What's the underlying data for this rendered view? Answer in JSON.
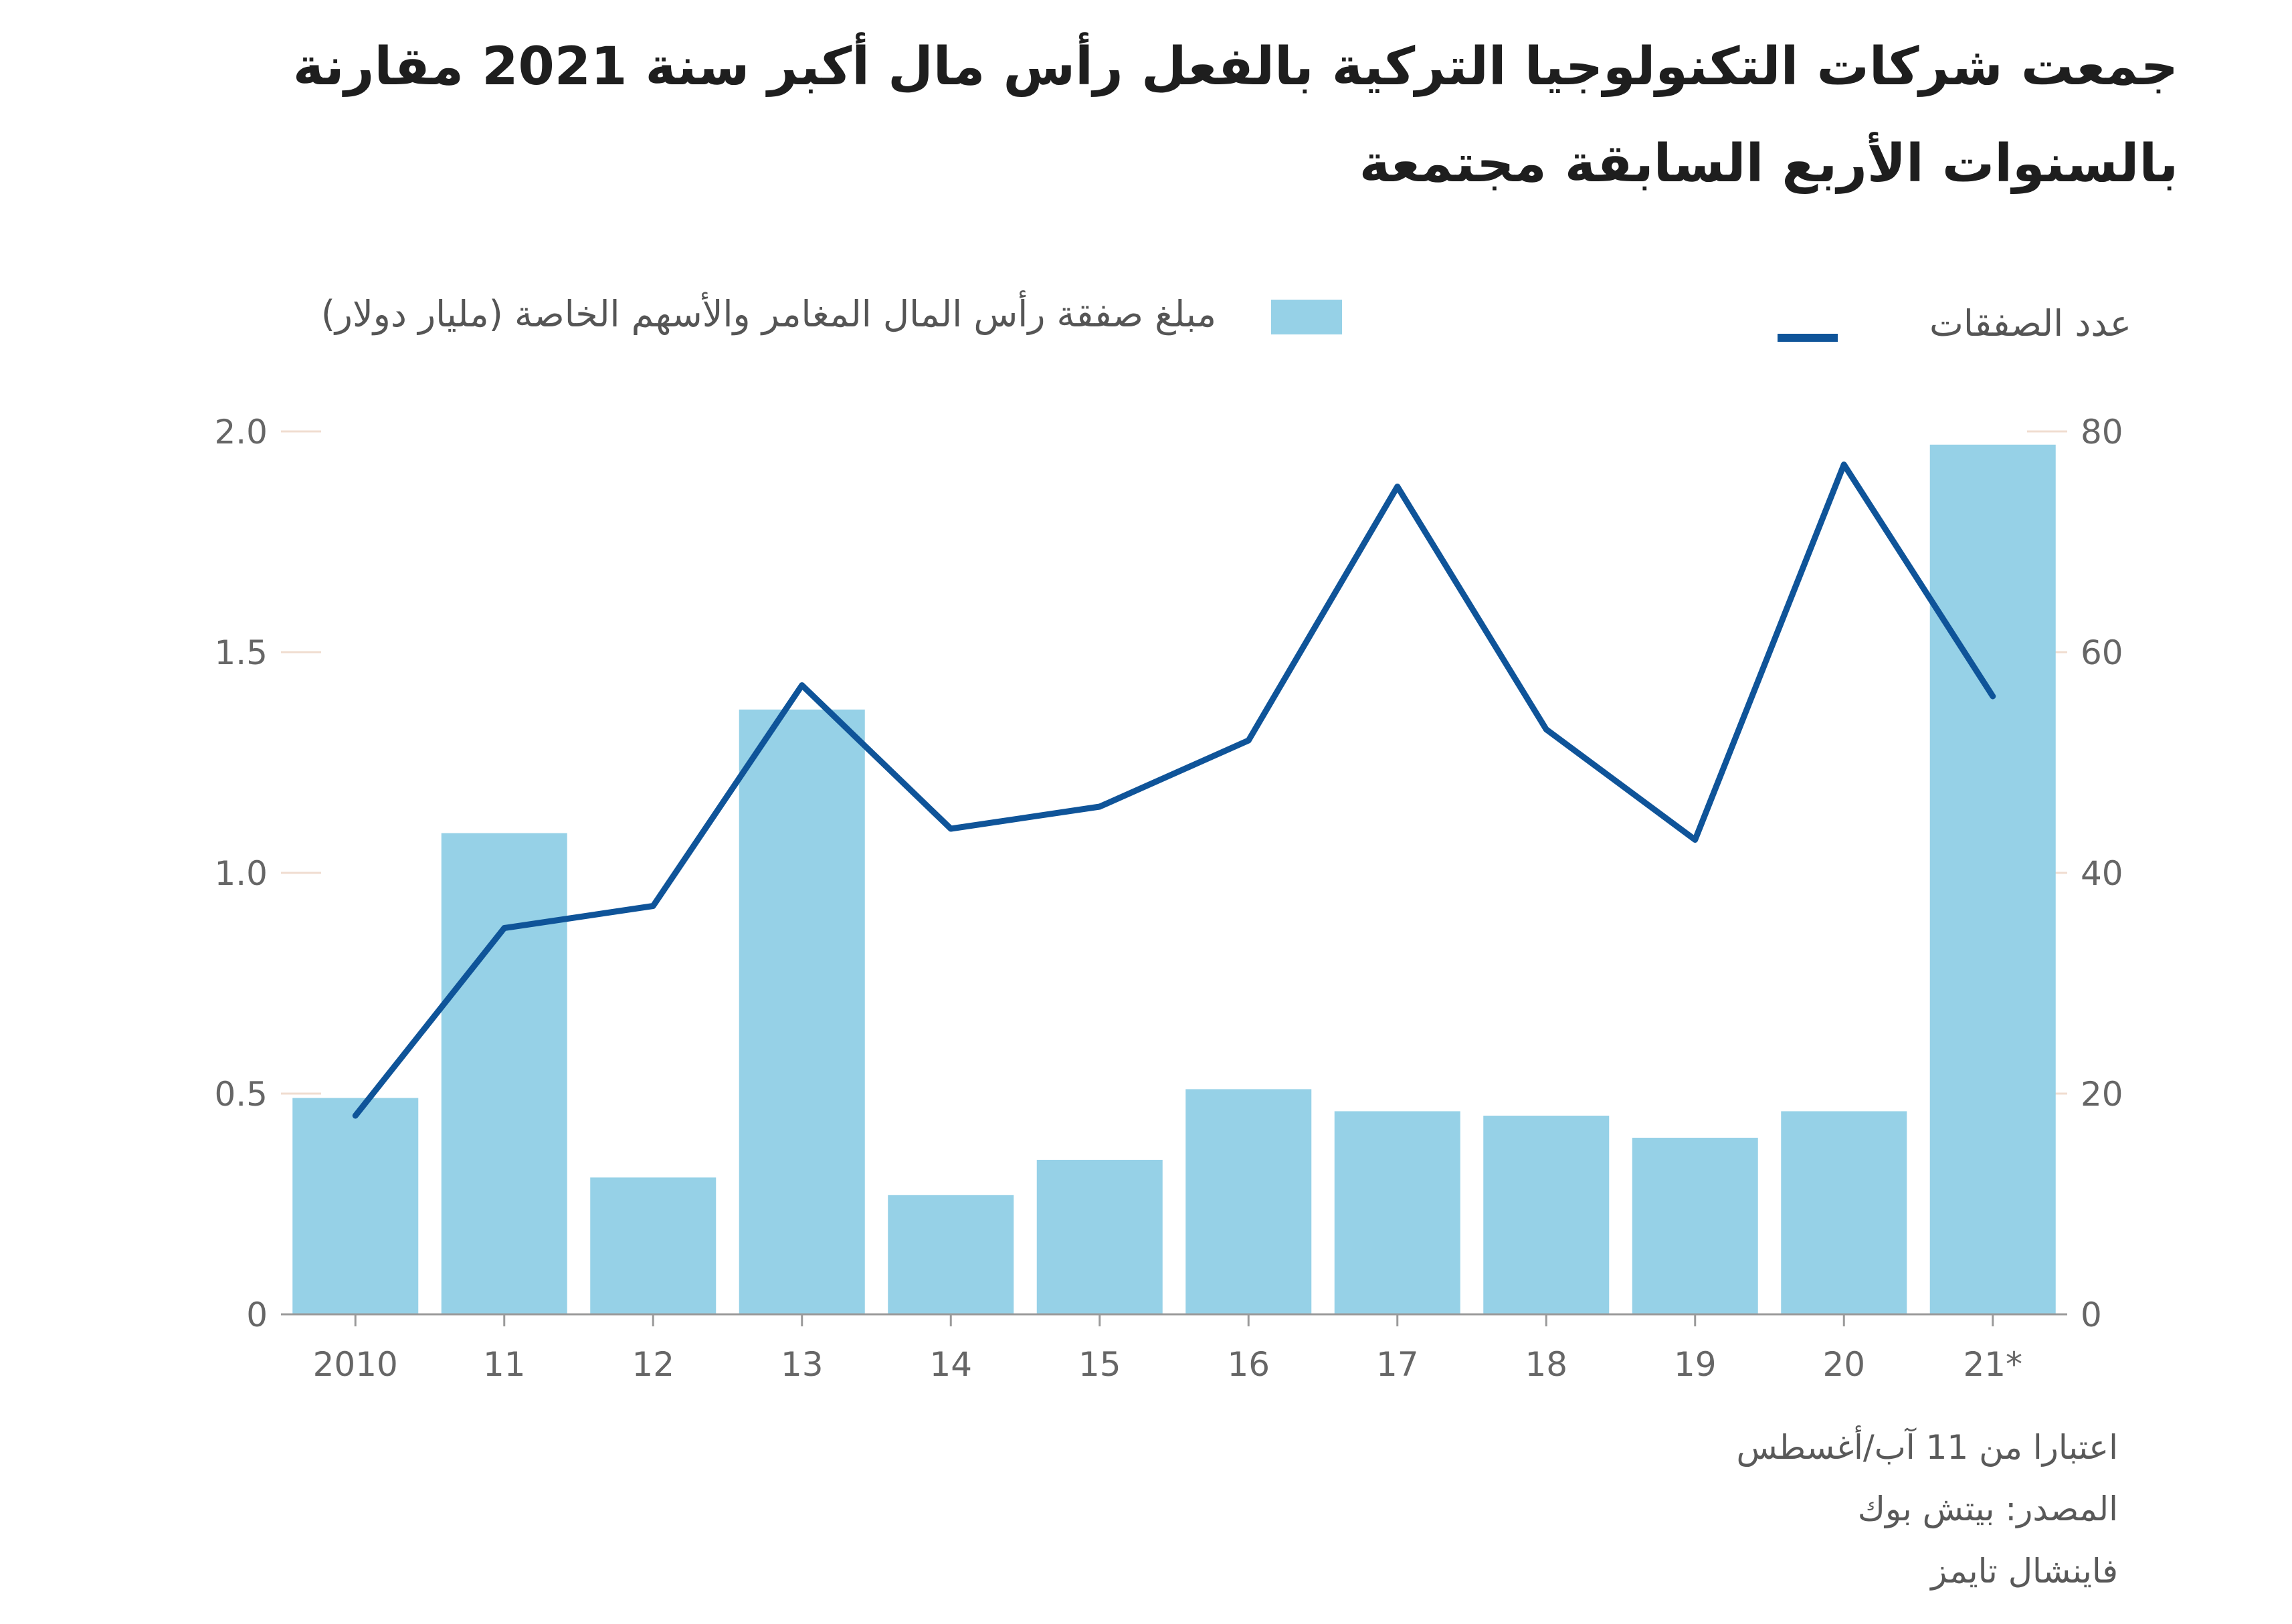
{
  "title_lines": [
    "جمعت شركات التكنولوجيا التركية بالفعل رأس مال أكبر سنة 2021 مقارنة",
    "بالسنوات الأربع السابقة مجتمعة"
  ],
  "legend": {
    "bars_label": "مبلغ صفقة رأس المال المغامر والأسهم الخاصة (مليار دولار)",
    "line_label": "عدد الصفقات"
  },
  "colors": {
    "bar": "#96d1e7",
    "line": "#0f5499",
    "axis": "#9a9a9a",
    "tick_text": "#666666",
    "gridmark": "#f0ddd0"
  },
  "footer": {
    "note": "اعتبارا من 11 آب/أغسطس",
    "source": "المصدر: بيتش بوك",
    "publisher": "فاينشال تايمز"
  },
  "chart_data": {
    "type": "bar+line",
    "categories": [
      "2010",
      "11",
      "12",
      "13",
      "14",
      "15",
      "16",
      "17",
      "18",
      "19",
      "20",
      "21*"
    ],
    "series": [
      {
        "name": "مبلغ صفقة رأس المال المغامر والأسهم الخاصة (مليار دولار)",
        "kind": "bar",
        "axis": "left",
        "values": [
          0.49,
          1.09,
          0.31,
          1.37,
          0.27,
          0.35,
          0.51,
          0.46,
          0.45,
          0.4,
          0.46,
          1.97
        ]
      },
      {
        "name": "عدد الصفقات",
        "kind": "line",
        "axis": "right",
        "values": [
          18,
          35,
          37,
          57,
          44,
          46,
          52,
          75,
          53,
          43,
          77,
          56
        ]
      }
    ],
    "left_axis": {
      "min": 0,
      "max": 2.0,
      "ticks": [
        "0",
        "0.5",
        "1.0",
        "1.5",
        "2.0"
      ],
      "tick_values": [
        0,
        0.5,
        1.0,
        1.5,
        2.0
      ]
    },
    "right_axis": {
      "min": 0,
      "max": 80,
      "ticks": [
        "0",
        "20",
        "40",
        "60",
        "80"
      ],
      "tick_values": [
        0,
        20,
        40,
        60,
        80
      ]
    },
    "grid": false
  }
}
